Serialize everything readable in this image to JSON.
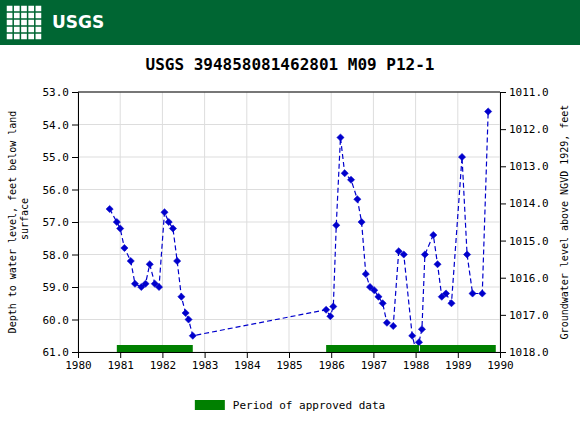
{
  "chart_data": {
    "type": "line",
    "title": "USGS 394858081462801 M09 P12-1",
    "header": {
      "text": "USGS",
      "color": "#006633"
    },
    "ylabel": "Depth to water level, feet below land\n surface",
    "y2label": "Groundwater level above NGVD 1929, feet",
    "xlim": [
      1980,
      1990
    ],
    "ylim": [
      61.0,
      53.0
    ],
    "y2lim": [
      1018.0,
      1011.0
    ],
    "xticks": [
      1980,
      1981,
      1982,
      1983,
      1984,
      1985,
      1986,
      1987,
      1988,
      1989,
      1990
    ],
    "yticks": [
      {
        "value": 53.0,
        "label": "53.0"
      },
      {
        "value": 54.0,
        "label": "54.0"
      },
      {
        "value": 55.0,
        "label": "55.0"
      },
      {
        "value": 56.0,
        "label": "56.0"
      },
      {
        "value": 57.0,
        "label": "57.0"
      },
      {
        "value": 58.0,
        "label": "58.0"
      },
      {
        "value": 59.0,
        "label": "59.0"
      },
      {
        "value": 60.0,
        "label": "60.0"
      },
      {
        "value": 61.0,
        "label": "61.0"
      }
    ],
    "y2ticks": [
      {
        "value": 1011.0,
        "label": "1011.0"
      },
      {
        "value": 1012.0,
        "label": "1012.0"
      },
      {
        "value": 1013.0,
        "label": "1013.0"
      },
      {
        "value": 1014.0,
        "label": "1014.0"
      },
      {
        "value": 1015.0,
        "label": "1015.0"
      },
      {
        "value": 1016.0,
        "label": "1016.0"
      },
      {
        "value": 1017.0,
        "label": "1017.0"
      },
      {
        "value": 1018.0,
        "label": "1018.0"
      }
    ],
    "grid": true,
    "legend": "bottom",
    "x": [
      1980.75,
      1980.92,
      1981.0,
      1981.1,
      1981.25,
      1981.35,
      1981.5,
      1981.6,
      1981.7,
      1981.82,
      1981.92,
      1982.05,
      1982.15,
      1982.25,
      1982.35,
      1982.45,
      1982.55,
      1982.62,
      1982.72,
      1985.88,
      1985.98,
      1986.05,
      1986.12,
      1986.22,
      1986.32,
      1986.47,
      1986.62,
      1986.72,
      1986.82,
      1986.92,
      1987.02,
      1987.12,
      1987.22,
      1987.32,
      1987.47,
      1987.6,
      1987.72,
      1987.92,
      1988.02,
      1988.08,
      1988.15,
      1988.22,
      1988.42,
      1988.52,
      1988.62,
      1988.72,
      1988.85,
      1989.1,
      1989.22,
      1989.35,
      1989.58,
      1989.72
    ],
    "series": [
      {
        "color": "#0000cc",
        "marker": "diamond",
        "line_style": "dashed",
        "values": [
          56.6,
          57.0,
          57.2,
          57.8,
          58.2,
          58.9,
          59.0,
          58.9,
          58.3,
          58.9,
          59.0,
          56.7,
          57.0,
          57.2,
          58.2,
          59.3,
          59.8,
          60.0,
          60.5,
          59.7,
          59.9,
          59.6,
          57.1,
          54.4,
          55.5,
          55.7,
          56.3,
          57.0,
          58.6,
          59.0,
          59.1,
          59.3,
          59.5,
          60.1,
          60.2,
          57.9,
          58.0,
          60.5,
          61.0,
          60.7,
          60.3,
          58.0,
          57.4,
          58.3,
          59.3,
          59.2,
          59.5,
          55.0,
          58.0,
          59.2,
          59.2,
          53.6
        ]
      }
    ],
    "periods": {
      "name": "Period of approved data",
      "color": "#008000",
      "ranges": [
        [
          1980.92,
          1982.72
        ],
        [
          1985.88,
          1988.08
        ],
        [
          1988.1,
          1989.9
        ]
      ]
    }
  }
}
